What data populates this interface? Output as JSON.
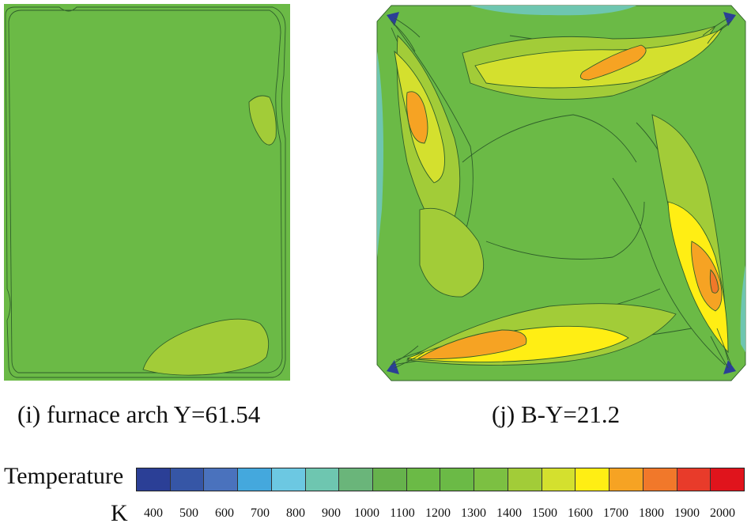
{
  "panels": [
    {
      "id": "i",
      "caption": "(i) furnace arch Y=61.54"
    },
    {
      "id": "j",
      "caption": "(j) B-Y=21.2"
    }
  ],
  "legend": {
    "title": "Temperature",
    "unit": "K",
    "ticks": [
      "400",
      "500",
      "600",
      "700",
      "800",
      "900",
      "1000",
      "1100",
      "1200",
      "1300",
      "1400",
      "1500",
      "1600",
      "1700",
      "1800",
      "1900",
      "2000"
    ],
    "colors": [
      "#2b3f96",
      "#3656a6",
      "#4a72bd",
      "#44a8dd",
      "#6cc8e2",
      "#6ec6b0",
      "#6ab57a",
      "#66b24c",
      "#6bba46",
      "#6bba46",
      "#7cc042",
      "#a2cc38",
      "#d4e02e",
      "#ffee14",
      "#f6a323",
      "#f1782a",
      "#e83b2a",
      "#e0141c"
    ]
  },
  "field_colors": {
    "base": "#6bba46",
    "light_green": "#a2cc38",
    "yellow_green": "#d4e02e",
    "yellow": "#ffee14",
    "orange": "#f6a323",
    "dark_orange": "#f1782a",
    "teal": "#6ec6b0",
    "cyan": "#6cc8e2",
    "blue": "#2b3f96",
    "outline": "#2f5f2a"
  }
}
